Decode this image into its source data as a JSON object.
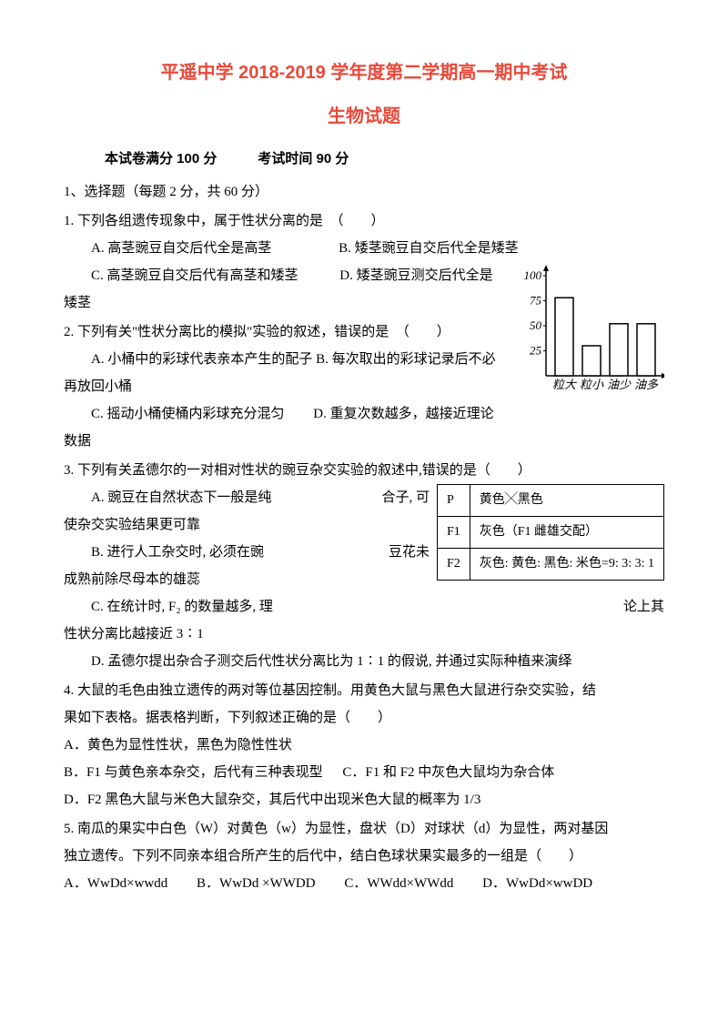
{
  "title": "平遥中学 2018-2019 学年度第二学期高一期中考试",
  "subtitle": "生物试题",
  "exam_info": "本试卷满分 100 分   考试时间 90 分",
  "section1": "1、选择题（每题 2 分，共 60 分）",
  "q1": {
    "stem": "1. 下列各组遗传现象中，属于性状分离的是　（　　）",
    "a": "A. 高茎豌豆自交后代全是高茎",
    "b": "B. 矮茎豌豆自交后代全是矮茎",
    "c": "C. 高茎豌豆自交后代有高茎和矮茎",
    "d": "D. 矮茎豌豆测交后代全是",
    "d_cont": "矮茎"
  },
  "q2": {
    "stem": "2. 下列有关\"性状分离比的模拟\"实验的叙述，错误的是　（　　）",
    "a_pre": "A. 小桶中的彩球代表亲本产生的配子",
    "b": "B. 每次取出的彩球记录后不必",
    "b_cont": "再放回小桶",
    "c": "C. 摇动小桶使桶内彩球充分混匀",
    "d": "D. 重复次数越多，越接近理论",
    "d_cont": "数据"
  },
  "q3": {
    "stem": "3. 下列有关孟德尔的一对相对性状的豌豆杂交实验的叙述中,错误的是（　　）",
    "a": "A. 豌豆在自然状态下一般是纯",
    "a_tail": "合子, 可",
    "a_cont": "使杂交实验结果更可靠",
    "b": "B. 进行人工杂交时, 必须在豌",
    "b_tail": "豆花未",
    "b_cont": "成熟前除尽母本的雄蕊",
    "c": "C. 在统计时, F₂ 的数量越多, 理",
    "c_tail": "论上其",
    "c_cont": "性状分离比越接近 3∶1",
    "d": "D. 孟德尔提出杂合子测交后代性状分离比为 1∶1 的假说, 并通过实际种植来演绎"
  },
  "q4": {
    "stem": "4. 大鼠的毛色由独立遗传的两对等位基因控制。用黄色大鼠与黑色大鼠进行杂交实验，结",
    "stem2": "果如下表格。据表格判断，下列叙述正确的是（　　）",
    "a": "A．黄色为显性性状，黑色为隐性性状",
    "b": "B．F1 与黄色亲本杂交，后代有三种表现型",
    "c": "C．F1 和 F2 中灰色大鼠均为杂合体",
    "d": "D．F2 黑色大鼠与米色大鼠杂交，其后代中出现米色大鼠的概率为 1/3"
  },
  "q5": {
    "stem": "5. 南瓜的果实中白色（W）对黄色（w）为显性，盘状（D）对球状（d）为显性，两对基因",
    "stem2": "独立遗传。下列不同亲本组合所产生的后代中，结白色球状果实最多的一组是（　　）",
    "a": "A．WwDd×wwdd",
    "b": "B．WwDd ×WWDD",
    "c": "C．WWdd×WWdd",
    "d": "D．WwDd×wwDD"
  },
  "table": {
    "p_label": "P",
    "p_val": "黄色╳黑色",
    "f1_label": "F1",
    "f1_val": "灰色（F1 雌雄交配）",
    "f2_label": "F2",
    "f2_val": "灰色: 黄色: 黑色: 米色=9: 3: 3: 1"
  },
  "chart": {
    "categories": [
      "粒大",
      "粒小",
      "油少",
      "油多"
    ],
    "values": [
      78,
      30,
      52,
      52
    ],
    "yticks": [
      25,
      50,
      75,
      100
    ],
    "bar_fill": "#ffffff",
    "bar_stroke": "#000000",
    "axis_color": "#000000",
    "font_family": "KaiTi, STKaiti, serif"
  }
}
